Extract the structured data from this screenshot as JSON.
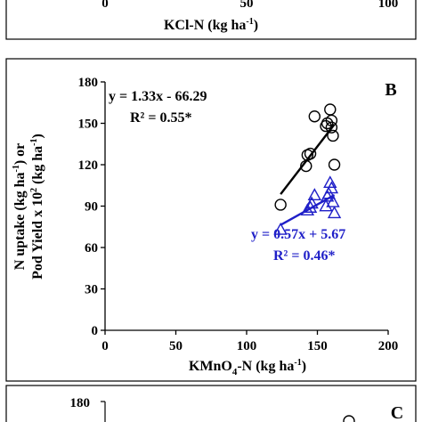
{
  "top_panel": {
    "xticks": [
      "0",
      "50",
      "100"
    ],
    "xlabel_main": "KCl-N (kg ha",
    "xlabel_sup": "-1",
    "xlabel_end": ")"
  },
  "bottom_panel": {
    "letter": "C",
    "yticks": [
      "180"
    ]
  },
  "chart_data": {
    "type": "scatter",
    "panel": "B",
    "xlabel_parts": [
      "KMnO",
      "4",
      "-N (kg ha",
      "-1",
      ")"
    ],
    "ylabel_line1_parts": [
      "N uptake (kg ha",
      "-1",
      ") or"
    ],
    "ylabel_line2_parts": [
      "Pod Yield x 10",
      "2",
      " (kg ha",
      "-1",
      ")"
    ],
    "xlim": [
      0,
      200
    ],
    "ylim": [
      0,
      180
    ],
    "xticks": [
      0,
      50,
      100,
      150,
      200
    ],
    "yticks": [
      0,
      30,
      60,
      90,
      120,
      150,
      180
    ],
    "grid": false,
    "series": [
      {
        "marker": "circle",
        "color": "#000000",
        "points": [
          [
            124,
            91
          ],
          [
            142,
            119
          ],
          [
            143,
            127
          ],
          [
            145,
            128
          ],
          [
            148,
            155
          ],
          [
            156,
            148
          ],
          [
            157,
            150
          ],
          [
            159,
            160
          ],
          [
            160,
            147
          ],
          [
            160,
            152
          ],
          [
            161,
            141
          ],
          [
            162,
            120
          ]
        ],
        "fit": {
          "slope": 1.33,
          "intercept": -66.29,
          "x_range": [
            124,
            162
          ]
        },
        "equation": "y = 1.33x - 66.29",
        "r2_main": "R² = 0.55",
        "r2_star": "*"
      },
      {
        "marker": "triangle",
        "color": "#1f1fc8",
        "points": [
          [
            124,
            73
          ],
          [
            143,
            87
          ],
          [
            145,
            89
          ],
          [
            146,
            92
          ],
          [
            148,
            98
          ],
          [
            156,
            90
          ],
          [
            157,
            97
          ],
          [
            158,
            99
          ],
          [
            159,
            107
          ],
          [
            160,
            103
          ],
          [
            161,
            93
          ],
          [
            162,
            85
          ]
        ],
        "fit": {
          "slope": 0.57,
          "intercept": 5.67,
          "x_range": [
            124,
            162
          ]
        },
        "equation": "y = 0.57x + 5.67",
        "r2_main": "R² = 0.46",
        "r2_star": "*"
      }
    ]
  }
}
